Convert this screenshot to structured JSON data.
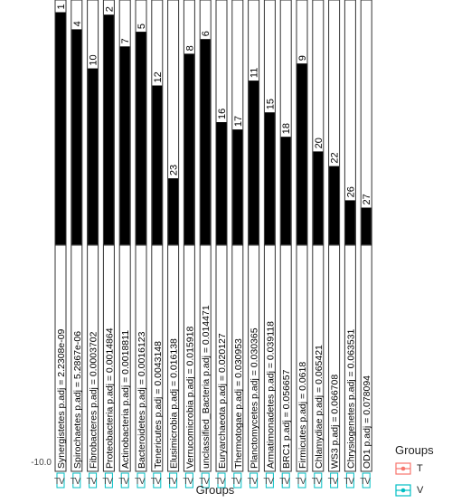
{
  "chart_data": {
    "type": "bar",
    "xlabel": "Groups",
    "ytick_label_stack": "-10.0",
    "legend": {
      "title": "Groups",
      "entries": [
        {
          "label": "T",
          "color": "#F8766D"
        },
        {
          "label": "V",
          "color": "#00BFC4"
        }
      ],
      "placement": "bottom-right"
    },
    "panels": [
      {
        "strip": "Synergistetes p.adj = 2.2308e-09",
        "rank": "1",
        "value": 0.95
      },
      {
        "strip": "Spirochaetes p.adj = 5.2867e-06",
        "rank": "4",
        "value": 0.88
      },
      {
        "strip": "Fibrobacteres p.adj = 0.0003702",
        "rank": "10",
        "value": 0.72
      },
      {
        "strip": "Proteobacteria p.adj = 0.0014864",
        "rank": "2",
        "value": 0.94
      },
      {
        "strip": "Actinobacteria p.adj = 0.0018811",
        "rank": "7",
        "value": 0.81
      },
      {
        "strip": "Bacteroidetes p.adj = 0.0016123",
        "rank": "5",
        "value": 0.87
      },
      {
        "strip": "Tenericutes p.adj = 0.0043148",
        "rank": "12",
        "value": 0.65
      },
      {
        "strip": "Elusimicrobia p.adj = 0.016138",
        "rank": "23",
        "value": 0.27
      },
      {
        "strip": "Verrucomicrobia p.adj = 0.015918",
        "rank": "8",
        "value": 0.78
      },
      {
        "strip": "unclassified_Bacteria p.adj = 0.014471",
        "rank": "6",
        "value": 0.84
      },
      {
        "strip": "Euryarchaeota p.adj = 0.020127",
        "rank": "16",
        "value": 0.5
      },
      {
        "strip": "Thermotogae p.adj = 0.030953",
        "rank": "17",
        "value": 0.47
      },
      {
        "strip": "Planctomycetes p.adj = 0.030365",
        "rank": "11",
        "value": 0.67
      },
      {
        "strip": "Armatimonadetes p.adj = 0.039118",
        "rank": "15",
        "value": 0.54
      },
      {
        "strip": "BRC1 p.adj = 0.056657",
        "rank": "18",
        "value": 0.44
      },
      {
        "strip": "Firmicutes p.adj = 0.0618",
        "rank": "9",
        "value": 0.74
      },
      {
        "strip": "Chlamydiae p.adj = 0.065421",
        "rank": "20",
        "value": 0.38
      },
      {
        "strip": "WS3 p.adj = 0.066708",
        "rank": "22",
        "value": 0.32
      },
      {
        "strip": "Chrysiogenetes p.adj = 0.063531",
        "rank": "26",
        "value": 0.18
      },
      {
        "strip": "OD1 p.adj = 0.078094",
        "rank": "27",
        "value": 0.15
      }
    ],
    "group_ticks": [
      "T",
      "V"
    ],
    "ylim": [
      0,
      1
    ],
    "grid": false
  }
}
